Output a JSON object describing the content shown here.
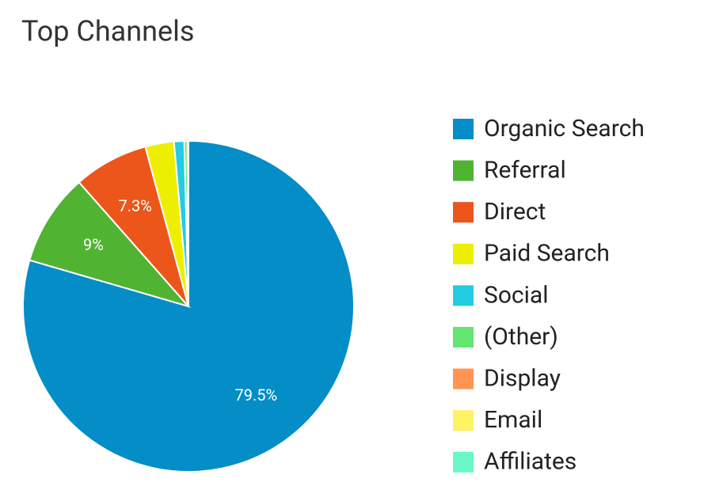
{
  "chart_data": {
    "type": "pie",
    "title": "Top Channels",
    "categories": [
      "Organic Search",
      "Referral",
      "Direct",
      "Paid Search",
      "Social",
      "(Other)",
      "Display",
      "Email",
      "Affiliates"
    ],
    "values": [
      79.5,
      9,
      7.3,
      2.8,
      1.0,
      0.3,
      0.05,
      0.03,
      0.02
    ],
    "value_labels": [
      "79.5%",
      "9%",
      "7.3%",
      null,
      null,
      null,
      null,
      null,
      null
    ],
    "colors": [
      "#058dc7",
      "#50b432",
      "#ed561b",
      "#edef00",
      "#24cbe5",
      "#64e572",
      "#ff9655",
      "#fff263",
      "#6af9c4"
    ],
    "legend": "right"
  }
}
